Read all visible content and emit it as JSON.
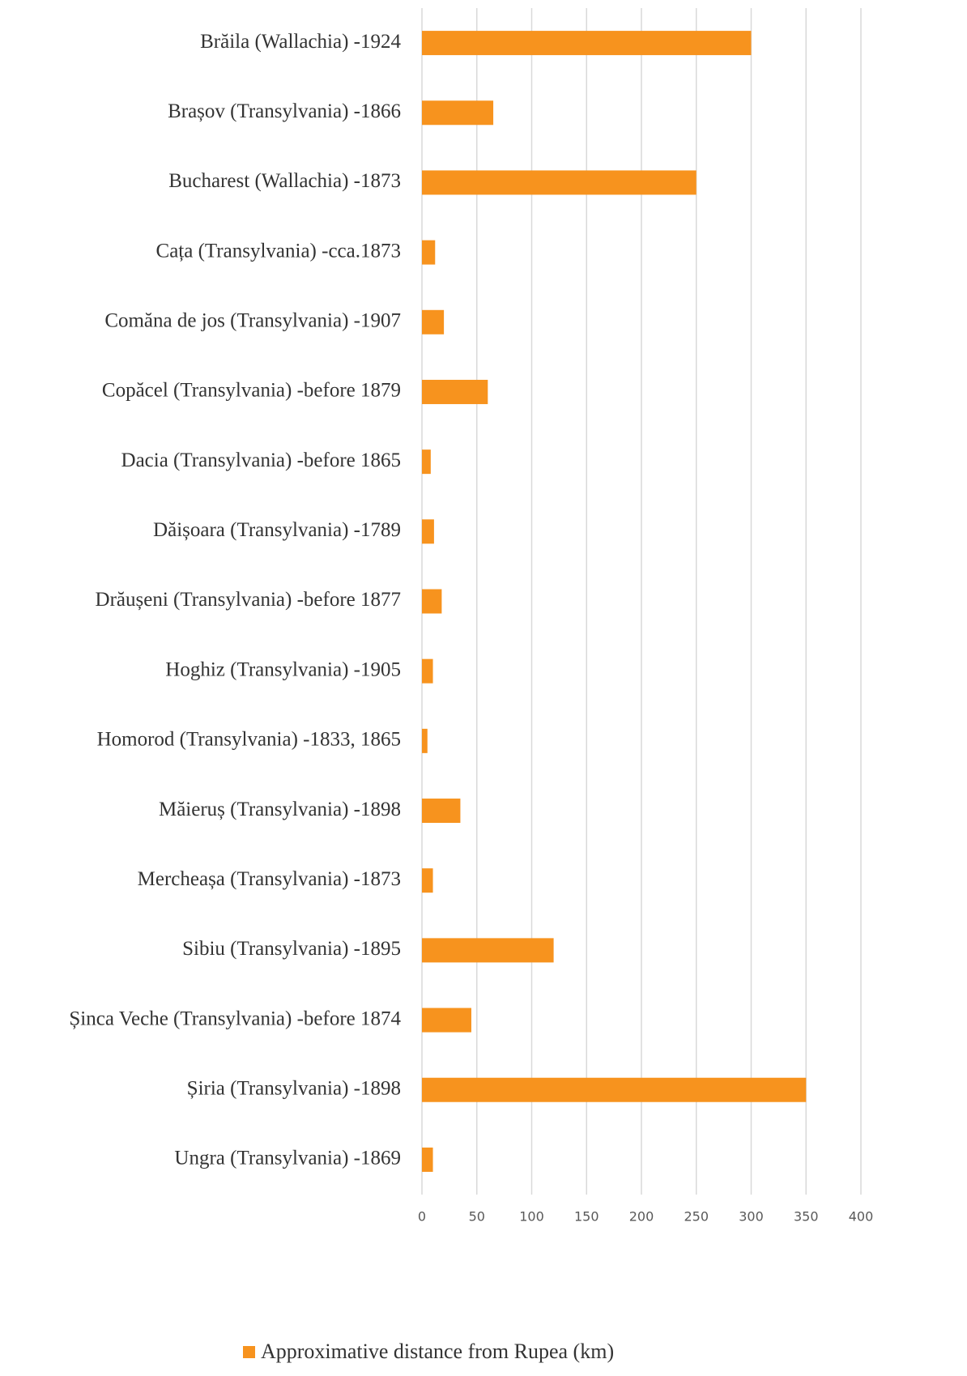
{
  "chart_data": {
    "type": "bar",
    "orientation": "horizontal",
    "categories": [
      "Brăila (Wallachia) -1924",
      "Brașov (Transylvania) -1866",
      "Bucharest (Wallachia) -1873",
      "Cața (Transylvania) -cca.1873",
      "Comăna de jos (Transylvania) -1907",
      "Copăcel (Transylvania) -before 1879",
      "Dacia (Transylvania) -before 1865",
      "Dăișoara (Transylvania) -1789",
      "Drăușeni (Transylvania) -before 1877",
      "Hoghiz (Transylvania) -1905",
      "Homorod (Transylvania) -1833, 1865",
      "Măieruș (Transylvania) -1898",
      "Mercheașa (Transylvania) -1873",
      "Sibiu (Transylvania) -1895",
      "Șinca Veche (Transylvania) -before 1874",
      "Șiria (Transylvania) -1898",
      "Ungra (Transylvania) -1869"
    ],
    "series": [
      {
        "name": "Approximative distance from Rupea (km)",
        "color": "#f7931e",
        "values": [
          300,
          65,
          250,
          12,
          20,
          60,
          8,
          11,
          18,
          10,
          5,
          35,
          10,
          120,
          45,
          350,
          10
        ]
      }
    ],
    "xlim": [
      0,
      400
    ],
    "xticks": [
      0,
      50,
      100,
      150,
      200,
      250,
      300,
      350,
      400
    ],
    "grid": true,
    "legend": "bottom"
  }
}
